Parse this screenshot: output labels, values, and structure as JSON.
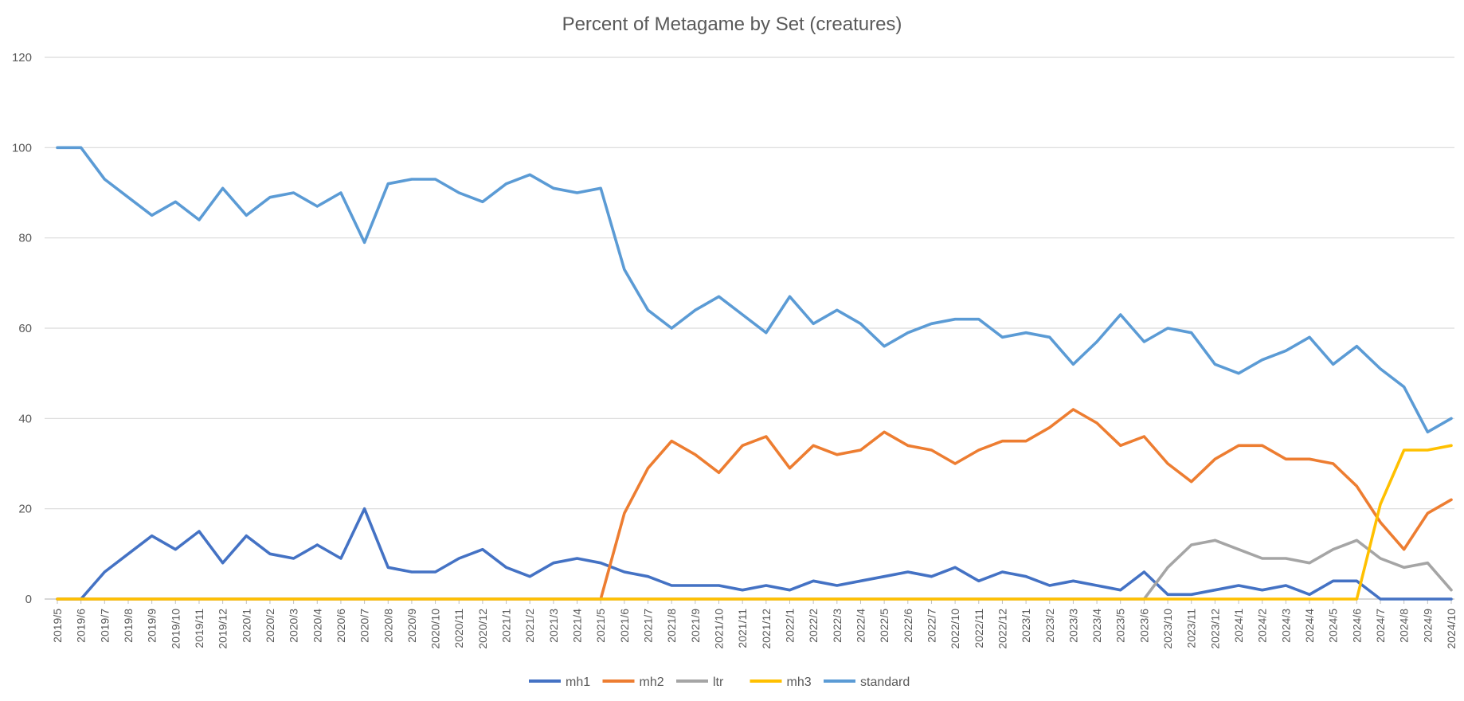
{
  "chart_data": {
    "type": "line",
    "title": "Percent of Metagame by Set (creatures)",
    "xlabel": "",
    "ylabel": "",
    "ylim": [
      0,
      120
    ],
    "yticks": [
      0,
      20,
      40,
      60,
      80,
      100,
      120
    ],
    "grid": true,
    "legend_position": "bottom",
    "categories": [
      "2019/5",
      "2019/6",
      "2019/7",
      "2019/8",
      "2019/9",
      "2019/10",
      "2019/11",
      "2019/12",
      "2020/1",
      "2020/2",
      "2020/3",
      "2020/4",
      "2020/6",
      "2020/7",
      "2020/8",
      "2020/9",
      "2020/10",
      "2020/11",
      "2020/12",
      "2021/1",
      "2021/2",
      "2021/3",
      "2021/4",
      "2021/5",
      "2021/6",
      "2021/7",
      "2021/8",
      "2021/9",
      "2021/10",
      "2021/11",
      "2021/12",
      "2022/1",
      "2022/2",
      "2022/3",
      "2022/4",
      "2022/5",
      "2022/6",
      "2022/7",
      "2022/10",
      "2022/11",
      "2022/12",
      "2023/1",
      "2023/2",
      "2023/3",
      "2023/4",
      "2023/5",
      "2023/6",
      "2023/10",
      "2023/11",
      "2023/12",
      "2024/1",
      "2024/2",
      "2024/3",
      "2024/4",
      "2024/5",
      "2024/6",
      "2024/7",
      "2024/8",
      "2024/9",
      "2024/10"
    ],
    "series": [
      {
        "name": "mh1",
        "color": "#4472c4",
        "values": [
          0,
          0,
          6,
          10,
          14,
          11,
          15,
          8,
          14,
          10,
          9,
          12,
          9,
          20,
          7,
          6,
          6,
          9,
          11,
          7,
          5,
          8,
          9,
          8,
          6,
          5,
          3,
          3,
          3,
          2,
          3,
          2,
          4,
          3,
          4,
          5,
          6,
          5,
          7,
          4,
          6,
          5,
          3,
          4,
          3,
          2,
          6,
          1,
          1,
          2,
          3,
          2,
          3,
          1,
          4,
          4,
          0,
          0,
          0,
          0
        ]
      },
      {
        "name": "mh2",
        "color": "#ed7d31",
        "values": [
          0,
          0,
          0,
          0,
          0,
          0,
          0,
          0,
          0,
          0,
          0,
          0,
          0,
          0,
          0,
          0,
          0,
          0,
          0,
          0,
          0,
          0,
          0,
          0,
          19,
          29,
          35,
          32,
          28,
          34,
          36,
          29,
          34,
          32,
          33,
          37,
          34,
          33,
          30,
          33,
          35,
          35,
          38,
          42,
          39,
          34,
          36,
          30,
          26,
          31,
          34,
          34,
          31,
          31,
          30,
          25,
          17,
          11,
          19,
          22
        ]
      },
      {
        "name": "ltr",
        "color": "#a5a5a5",
        "values": [
          0,
          0,
          0,
          0,
          0,
          0,
          0,
          0,
          0,
          0,
          0,
          0,
          0,
          0,
          0,
          0,
          0,
          0,
          0,
          0,
          0,
          0,
          0,
          0,
          0,
          0,
          0,
          0,
          0,
          0,
          0,
          0,
          0,
          0,
          0,
          0,
          0,
          0,
          0,
          0,
          0,
          0,
          0,
          0,
          0,
          0,
          0,
          7,
          12,
          13,
          11,
          9,
          9,
          8,
          11,
          13,
          9,
          7,
          8,
          2
        ]
      },
      {
        "name": "mh3",
        "color": "#ffc000",
        "values": [
          0,
          0,
          0,
          0,
          0,
          0,
          0,
          0,
          0,
          0,
          0,
          0,
          0,
          0,
          0,
          0,
          0,
          0,
          0,
          0,
          0,
          0,
          0,
          0,
          0,
          0,
          0,
          0,
          0,
          0,
          0,
          0,
          0,
          0,
          0,
          0,
          0,
          0,
          0,
          0,
          0,
          0,
          0,
          0,
          0,
          0,
          0,
          0,
          0,
          0,
          0,
          0,
          0,
          0,
          0,
          0,
          21,
          33,
          33,
          34
        ]
      },
      {
        "name": "standard",
        "color": "#5b9bd5",
        "values": [
          100,
          100,
          93,
          89,
          85,
          88,
          84,
          91,
          85,
          89,
          90,
          87,
          90,
          79,
          92,
          93,
          93,
          90,
          88,
          92,
          94,
          91,
          90,
          91,
          73,
          64,
          60,
          64,
          67,
          63,
          59,
          67,
          61,
          64,
          61,
          56,
          59,
          61,
          62,
          62,
          58,
          59,
          58,
          52,
          57,
          63,
          57,
          60,
          59,
          52,
          50,
          53,
          55,
          58,
          52,
          56,
          51,
          47,
          37,
          40
        ]
      }
    ]
  }
}
